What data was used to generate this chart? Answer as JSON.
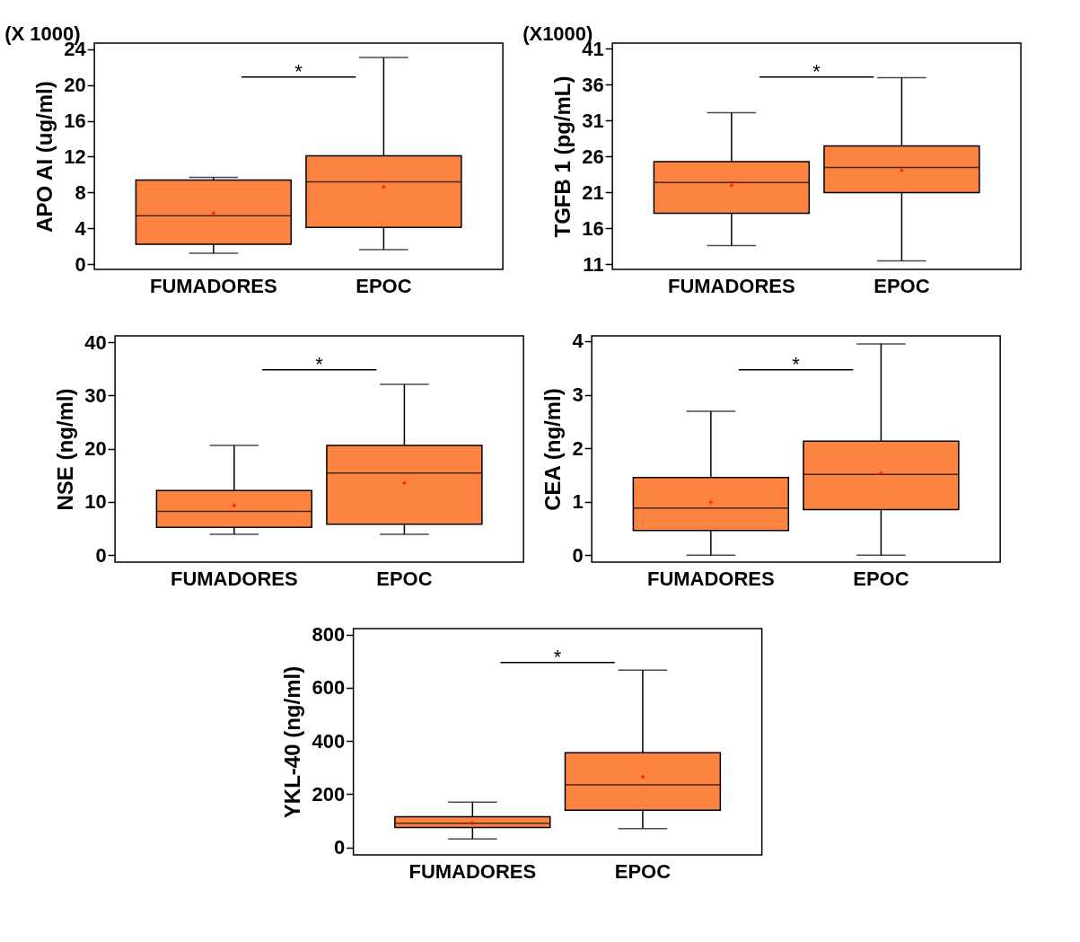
{
  "chart_data": [
    {
      "type": "box",
      "categories": [
        "FUMADORES",
        "EPOC"
      ],
      "ylabel": "APO AI (ug/ml)",
      "ylim": [
        -0.6,
        24.7
      ],
      "yticks": [
        0,
        4,
        8,
        12,
        16,
        20,
        24
      ],
      "color": "#fd8341",
      "annotations": [
        "*",
        "(X 1000)"
      ],
      "boxes": [
        {
          "low": 1.2,
          "q1": 2.2,
          "median": 5.4,
          "q3": 9.4,
          "high": 9.7,
          "mean": 5.7
        },
        {
          "low": 1.6,
          "q1": 4.1,
          "median": 9.2,
          "q3": 12.1,
          "high": 23.1,
          "mean": 8.6
        }
      ]
    },
    {
      "type": "box",
      "categories": [
        "FUMADORES",
        "EPOC"
      ],
      "ylabel": "TGFB 1  (pg/mL)",
      "ylim": [
        10.3,
        41.8
      ],
      "yticks": [
        11,
        16,
        21,
        26,
        31,
        36,
        41
      ],
      "color": "#fd8341",
      "annotations": [
        "*",
        "(X1000)"
      ],
      "boxes": [
        {
          "low": 13.6,
          "q1": 18.1,
          "median": 22.4,
          "q3": 25.3,
          "high": 32.1,
          "mean": 22.0
        },
        {
          "low": 11.5,
          "q1": 21.0,
          "median": 24.5,
          "q3": 27.5,
          "high": 37.0,
          "mean": 24.1
        }
      ]
    },
    {
      "type": "box",
      "categories": [
        "FUMADORES",
        "EPOC"
      ],
      "ylabel": "NSE  (ng/ml)",
      "ylim": [
        -1.35,
        41.2
      ],
      "yticks": [
        0,
        10,
        20,
        30,
        40
      ],
      "color": "#fd8341",
      "annotations": [
        "*"
      ],
      "boxes": [
        {
          "low": 3.9,
          "q1": 5.2,
          "median": 8.2,
          "q3": 12.1,
          "high": 20.6,
          "mean": 9.3
        },
        {
          "low": 3.9,
          "q1": 5.8,
          "median": 15.4,
          "q3": 20.6,
          "high": 32.1,
          "mean": 13.5
        }
      ]
    },
    {
      "type": "box",
      "categories": [
        "FUMADORES",
        "EPOC"
      ],
      "ylabel": "CEA (ng/ml)",
      "ylim": [
        -0.13,
        4.1
      ],
      "yticks": [
        0,
        1,
        2,
        3,
        4
      ],
      "color": "#fd8341",
      "annotations": [
        "*"
      ],
      "boxes": [
        {
          "low": 0.0,
          "q1": 0.46,
          "median": 0.88,
          "q3": 1.45,
          "high": 2.69,
          "mean": 0.99
        },
        {
          "low": 0.0,
          "q1": 0.85,
          "median": 1.51,
          "q3": 2.13,
          "high": 3.95,
          "mean": 1.53
        }
      ]
    },
    {
      "type": "box",
      "categories": [
        "FUMADORES",
        "EPOC"
      ],
      "ylabel": "YKL-40 (ng/ml)",
      "ylim": [
        -28,
        822
      ],
      "yticks": [
        0,
        200,
        400,
        600,
        800
      ],
      "color": "#fd8341",
      "annotations": [
        "*"
      ],
      "boxes": [
        {
          "low": 32,
          "q1": 75,
          "median": 91,
          "q3": 115,
          "high": 170,
          "mean": 92
        },
        {
          "low": 71,
          "q1": 140,
          "median": 235,
          "q3": 356,
          "high": 666,
          "mean": 265
        }
      ]
    }
  ]
}
